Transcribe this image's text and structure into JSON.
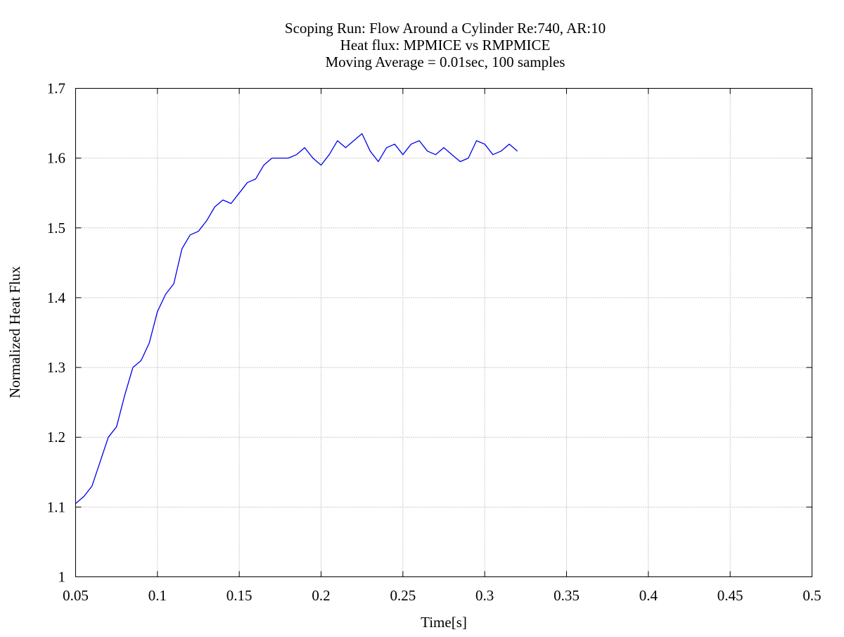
{
  "chart_data": {
    "type": "line",
    "title": [
      "Scoping Run: Flow Around a Cylinder Re:740, AR:10",
      "Heat flux: MPMICE vs RMPMICE",
      "Moving Average = 0.01sec, 100 samples"
    ],
    "xlabel": "Time[s]",
    "ylabel": "Normalized Heat Flux",
    "xlim": [
      0.05,
      0.5
    ],
    "ylim": [
      1.0,
      1.7
    ],
    "xticks": [
      "0.05",
      "0.1",
      "0.15",
      "0.2",
      "0.25",
      "0.3",
      "0.35",
      "0.4",
      "0.45",
      "0.5"
    ],
    "yticks": [
      "1",
      "1.1",
      "1.2",
      "1.3",
      "1.4",
      "1.5",
      "1.6",
      "1.7"
    ],
    "grid": true,
    "legend": "none",
    "series": [
      {
        "color": "#0000ee",
        "x": [
          0.05,
          0.055,
          0.06,
          0.065,
          0.07,
          0.075,
          0.08,
          0.085,
          0.09,
          0.095,
          0.1,
          0.105,
          0.11,
          0.115,
          0.12,
          0.125,
          0.13,
          0.135,
          0.14,
          0.145,
          0.15,
          0.155,
          0.16,
          0.165,
          0.17,
          0.175,
          0.18,
          0.185,
          0.19,
          0.195,
          0.2,
          0.205,
          0.21,
          0.215,
          0.22,
          0.225,
          0.23,
          0.235,
          0.24,
          0.245,
          0.25,
          0.255,
          0.26,
          0.265,
          0.27,
          0.275,
          0.28,
          0.285,
          0.29,
          0.295,
          0.3,
          0.305,
          0.31,
          0.315,
          0.32
        ],
        "y": [
          1.105,
          1.115,
          1.13,
          1.165,
          1.2,
          1.215,
          1.26,
          1.3,
          1.31,
          1.335,
          1.38,
          1.405,
          1.42,
          1.47,
          1.49,
          1.495,
          1.51,
          1.53,
          1.54,
          1.535,
          1.55,
          1.565,
          1.57,
          1.59,
          1.6,
          1.6,
          1.6,
          1.605,
          1.615,
          1.6,
          1.59,
          1.605,
          1.625,
          1.615,
          1.625,
          1.635,
          1.61,
          1.595,
          1.615,
          1.62,
          1.605,
          1.62,
          1.625,
          1.61,
          1.605,
          1.615,
          1.605,
          1.595,
          1.6,
          1.625,
          1.62,
          1.605,
          1.61,
          1.62,
          1.61
        ]
      }
    ]
  }
}
